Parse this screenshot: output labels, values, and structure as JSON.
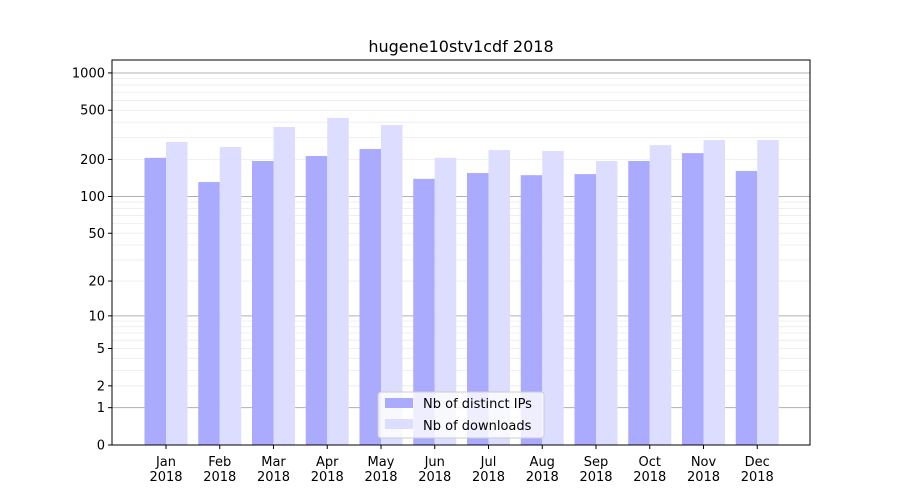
{
  "chart_data": {
    "type": "bar",
    "title": "hugene10stv1cdf 2018",
    "xlabel": "",
    "ylabel": "",
    "yscale": "log(1+x)",
    "ylim": [
      0,
      1270
    ],
    "grid": true,
    "legend_position": "bottom-center",
    "categories": [
      "Jan\n2018",
      "Feb\n2018",
      "Mar\n2018",
      "Apr\n2018",
      "May\n2018",
      "Jun\n2018",
      "Jul\n2018",
      "Aug\n2018",
      "Sep\n2018",
      "Oct\n2018",
      "Nov\n2018",
      "Dec\n2018"
    ],
    "yticks": [
      0,
      1,
      2,
      5,
      10,
      20,
      50,
      100,
      200,
      500,
      1000
    ],
    "series": [
      {
        "name": "Nb of distinct IPs",
        "color": "#aaaaff",
        "values": [
          206,
          131,
          194,
          213,
          243,
          139,
          155,
          149,
          152,
          194,
          225,
          161
        ]
      },
      {
        "name": "Nb of downloads",
        "color": "#ddddff",
        "values": [
          277,
          252,
          366,
          433,
          380,
          206,
          238,
          234,
          194,
          261,
          287,
          287
        ]
      }
    ]
  }
}
